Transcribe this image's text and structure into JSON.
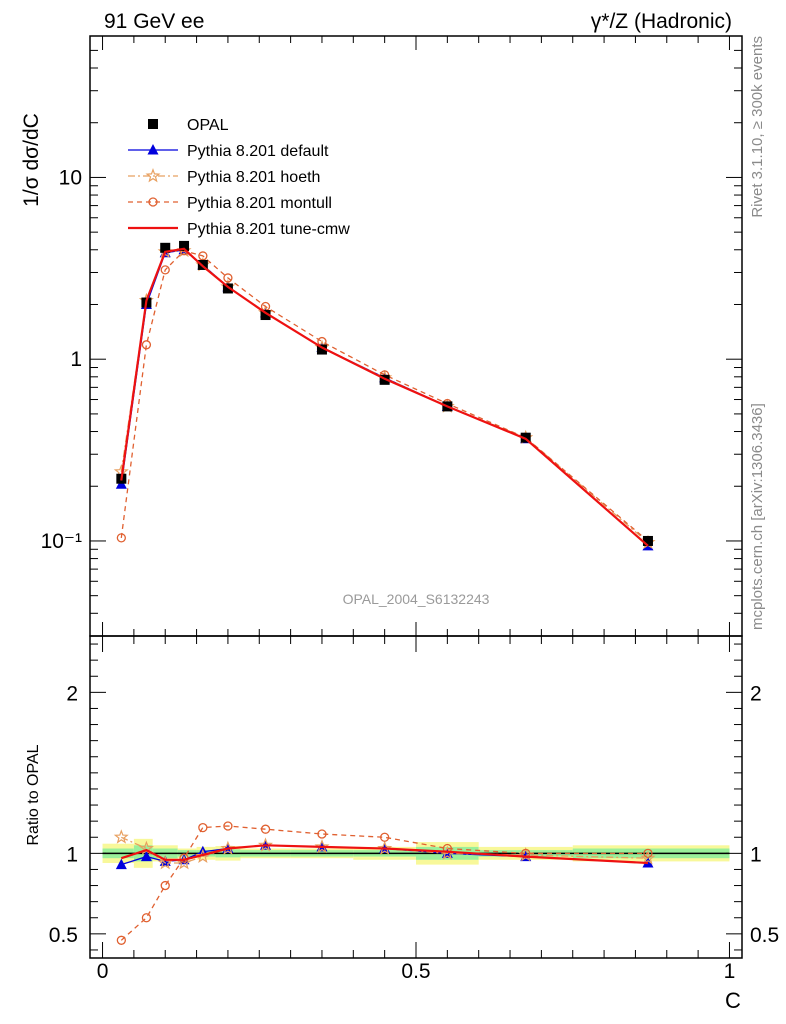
{
  "header": {
    "left": "91 GeV ee",
    "right": "γ*/Z (Hadronic)"
  },
  "side_text": {
    "rivet": "Rivet 3.1.10, ≥ 300k events",
    "mcplots": "mcplots.cern.ch [arXiv:1306.3436]"
  },
  "chart_data": [
    {
      "panel": "main",
      "type": "line",
      "scale": "log",
      "ylabel": "1/σ dσ/dC",
      "annotation": "OPAL_2004_S6132243",
      "xlim": [
        -0.02,
        1.02
      ],
      "ylim": [
        0.03,
        60
      ],
      "ytick_labels": [
        "10⁻¹",
        "1",
        "10"
      ],
      "x": [
        0.03,
        0.07,
        0.1,
        0.13,
        0.16,
        0.2,
        0.26,
        0.35,
        0.45,
        0.55,
        0.675,
        0.87
      ],
      "data": {
        "name": "OPAL",
        "values": [
          0.22,
          2.05,
          4.1,
          4.2,
          3.3,
          2.45,
          1.75,
          1.13,
          0.77,
          0.55,
          0.37,
          0.1
        ]
      },
      "series": [
        {
          "name": "Pythia 8.201 default",
          "color": "#0000dd",
          "style": "solid",
          "marker": "triangle",
          "values": [
            0.205,
            2.0,
            3.85,
            4.0,
            3.3,
            2.5,
            1.8,
            1.16,
            0.79,
            0.55,
            0.365,
            0.094
          ]
        },
        {
          "name": "Pythia 8.201 hoeth",
          "color": "#e8a060",
          "style": "dashdot",
          "marker": "star",
          "values": [
            0.24,
            2.1,
            3.9,
            3.95,
            3.3,
            2.5,
            1.8,
            1.16,
            0.79,
            0.55,
            0.37,
            0.098
          ]
        },
        {
          "name": "Pythia 8.201 montull",
          "color": "#e06030",
          "style": "dashed",
          "marker": "circle",
          "values": [
            0.104,
            1.2,
            3.1,
            3.95,
            3.7,
            2.8,
            1.95,
            1.25,
            0.82,
            0.57,
            0.37,
            0.1
          ]
        },
        {
          "name": "Pythia 8.201 tune-cmw",
          "color": "#ee1111",
          "style": "solid",
          "marker": "none",
          "values": [
            0.215,
            2.1,
            3.9,
            4.05,
            3.25,
            2.5,
            1.8,
            1.16,
            0.78,
            0.55,
            0.365,
            0.094
          ]
        }
      ]
    },
    {
      "panel": "ratio",
      "type": "line",
      "scale": "linear",
      "ylabel": "Ratio to OPAL",
      "xlabel": "C",
      "xlim": [
        -0.02,
        1.02
      ],
      "ylim": [
        0.35,
        2.35
      ],
      "xtick_labels": [
        "0",
        "0.5",
        "1"
      ],
      "ytick_labels": [
        "0.5",
        "1",
        "2"
      ],
      "x": [
        0.03,
        0.07,
        0.1,
        0.13,
        0.16,
        0.2,
        0.26,
        0.35,
        0.45,
        0.55,
        0.675,
        0.87
      ],
      "band_edges": [
        0.0,
        0.05,
        0.08,
        0.12,
        0.15,
        0.18,
        0.22,
        0.3,
        0.4,
        0.5,
        0.6,
        0.75,
        1.0
      ],
      "band_stat": [
        0.03,
        0.05,
        0.03,
        0.02,
        0.02,
        0.025,
        0.02,
        0.02,
        0.02,
        0.04,
        0.02,
        0.03
      ],
      "band_total": [
        0.06,
        0.09,
        0.05,
        0.03,
        0.04,
        0.045,
        0.03,
        0.03,
        0.04,
        0.07,
        0.04,
        0.05
      ],
      "series": [
        {
          "name": "Pythia 8.201 default",
          "color": "#0000dd",
          "style": "solid",
          "marker": "triangle",
          "values": [
            0.93,
            0.98,
            0.95,
            0.96,
            1.01,
            1.03,
            1.05,
            1.04,
            1.03,
            1.0,
            0.98,
            0.94
          ]
        },
        {
          "name": "Pythia 8.201 hoeth",
          "color": "#e8a060",
          "style": "dashdot",
          "marker": "star",
          "values": [
            1.1,
            1.03,
            0.94,
            0.94,
            0.98,
            1.03,
            1.05,
            1.04,
            1.03,
            1.0,
            0.99,
            0.97
          ]
        },
        {
          "name": "Pythia 8.201 montull",
          "color": "#e06030",
          "style": "dashed",
          "marker": "circle",
          "values": [
            0.46,
            0.6,
            0.8,
            0.97,
            1.16,
            1.17,
            1.15,
            1.12,
            1.1,
            1.03,
            1.0,
            1.0
          ]
        },
        {
          "name": "Pythia 8.201 tune-cmw",
          "color": "#ee1111",
          "style": "solid",
          "marker": "none",
          "values": [
            0.97,
            1.02,
            0.96,
            0.96,
            0.99,
            1.03,
            1.05,
            1.04,
            1.03,
            1.01,
            0.98,
            0.94
          ]
        }
      ]
    }
  ]
}
